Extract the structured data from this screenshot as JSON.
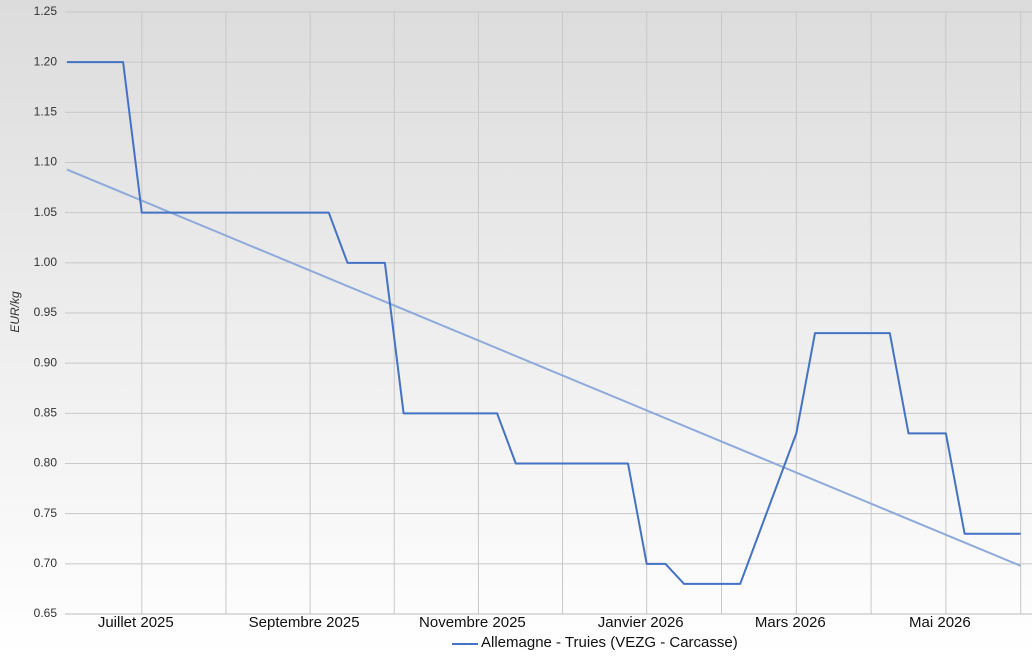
{
  "chart_data": {
    "type": "line",
    "y_label": "EUR/kg",
    "categories": [
      null,
      null,
      null,
      null,
      "Juillet 2025",
      null,
      null,
      null,
      null,
      null,
      null,
      null,
      null,
      "Septembre 2025",
      null,
      null,
      null,
      null,
      null,
      null,
      null,
      null,
      "Novembre 2025",
      null,
      null,
      null,
      null,
      null,
      null,
      null,
      null,
      "Janvier 2026",
      null,
      null,
      null,
      null,
      null,
      null,
      null,
      "Mars 2026",
      null,
      null,
      null,
      null,
      null,
      null,
      null,
      "Mai 2026",
      null,
      null,
      null,
      null
    ],
    "series": [
      {
        "name": "Allemagne - Truies (VEZG - Carcasse)",
        "color": "#4472c4",
        "values": [
          1.2,
          1.2,
          1.2,
          1.2,
          1.05,
          1.05,
          1.05,
          1.05,
          1.05,
          1.05,
          1.05,
          1.05,
          1.05,
          1.05,
          1.05,
          1.0,
          1.0,
          1.0,
          0.85,
          0.85,
          0.85,
          0.85,
          0.85,
          0.85,
          0.8,
          0.8,
          0.8,
          0.8,
          0.8,
          0.8,
          0.8,
          0.7,
          0.7,
          0.68,
          0.68,
          0.68,
          0.68,
          0.73,
          0.78,
          0.83,
          0.93,
          0.93,
          0.93,
          0.93,
          0.93,
          0.83,
          0.83,
          0.83,
          0.73,
          0.73,
          0.73,
          0.73
        ]
      }
    ],
    "trendline": {
      "color": "#8eaadb",
      "values": [
        1.093,
        0.698
      ]
    },
    "ylim": [
      0.65,
      1.25
    ],
    "yticks": [
      0.65,
      {
        "value": 0.7,
        "label": "0.70"
      },
      0.75,
      {
        "value": 0.8,
        "label": "0.80"
      },
      0.85,
      {
        "value": 0.9,
        "label": "0.90"
      },
      0.95,
      {
        "value": 1.0,
        "label": "1.00"
      },
      1.05,
      {
        "value": 1.1,
        "label": "1.10"
      },
      1.15,
      {
        "value": 1.2,
        "label": "1.20"
      },
      1.25
    ],
    "grid": true,
    "legend": "bottom"
  }
}
